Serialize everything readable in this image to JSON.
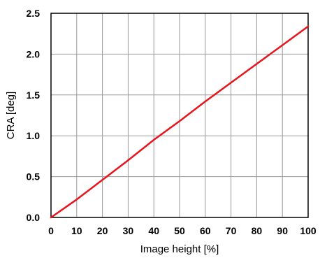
{
  "chart_data": {
    "type": "line",
    "title": "",
    "xlabel": "Image height [%]",
    "ylabel": "CRA [deg]",
    "xlim": [
      0,
      100
    ],
    "ylim": [
      0,
      2.5
    ],
    "x_ticks": [
      "0",
      "10",
      "20",
      "30",
      "40",
      "50",
      "60",
      "70",
      "80",
      "90",
      "100"
    ],
    "y_ticks": [
      "0.0",
      "0.5",
      "1.0",
      "1.5",
      "2.0",
      "2.5"
    ],
    "grid": true,
    "series": [
      {
        "color": "#e8141c",
        "x": [
          0,
          10,
          20,
          30,
          40,
          50,
          60,
          70,
          80,
          90,
          100
        ],
        "y": [
          0.0,
          0.22,
          0.46,
          0.7,
          0.95,
          1.18,
          1.42,
          1.65,
          1.88,
          2.11,
          2.34
        ]
      }
    ]
  }
}
